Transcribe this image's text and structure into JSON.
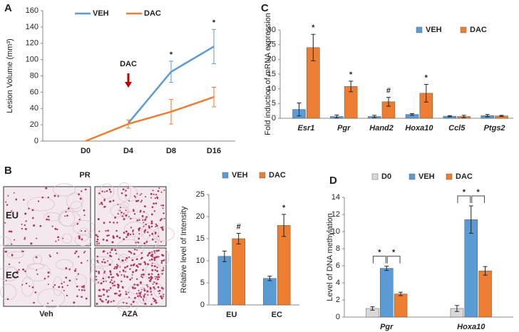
{
  "panel_labels": [
    "A",
    "B",
    "C",
    "D"
  ],
  "image_panel": {
    "title": "PR",
    "rows": [
      "EU",
      "EC"
    ],
    "columns": [
      "Veh",
      "AZA"
    ]
  },
  "chart_data": [
    {
      "type": "line",
      "ylabel": "Lesion Volume (mm³)",
      "categories": [
        "D0",
        "D4",
        "D8",
        "D16"
      ],
      "ylim": [
        0,
        160
      ],
      "yticks": [
        0,
        20,
        40,
        60,
        80,
        100,
        120,
        140,
        160
      ],
      "series": [
        {
          "name": "VEH",
          "color": "#5b9bd5",
          "values": [
            null,
            22,
            85,
            116
          ],
          "errors": [
            null,
            null,
            13,
            21
          ],
          "annotations": [
            null,
            null,
            "*",
            "*"
          ]
        },
        {
          "name": "DAC",
          "color": "#ed7d31",
          "values": [
            0,
            21,
            36,
            54
          ],
          "errors": [
            null,
            5,
            15,
            12
          ],
          "annotations": [
            null,
            null,
            null,
            null
          ]
        }
      ],
      "event": {
        "label": "DAC",
        "x": "D4",
        "color": "#c00000"
      }
    },
    {
      "type": "bar",
      "ylabel": "Relative level of Intensity",
      "categories": [
        "EU",
        "EC"
      ],
      "ylim": [
        0,
        25
      ],
      "yticks": [
        0,
        5,
        10,
        15,
        20,
        25
      ],
      "series": [
        {
          "name": "VEH",
          "color": "#5b9bd5",
          "values": [
            11,
            6
          ],
          "errors": [
            1.2,
            0.5
          ],
          "annotations": [
            null,
            null
          ]
        },
        {
          "name": "DAC",
          "color": "#ed7d31",
          "values": [
            15,
            18
          ],
          "errors": [
            1.2,
            2.5
          ],
          "annotations": [
            "#",
            "*"
          ]
        }
      ]
    },
    {
      "type": "bar",
      "ylabel": "Fold induction  of mRNA expression",
      "italic_categories": true,
      "categories": [
        "Esr1",
        "Pgr",
        "Hand2",
        "Hoxa10",
        "Ccl5",
        "Ptgs2"
      ],
      "ylim": [
        0,
        30
      ],
      "yticks": [
        0,
        5,
        10,
        15,
        20,
        25,
        30
      ],
      "series": [
        {
          "name": "VEH",
          "color": "#5b9bd5",
          "values": [
            3,
            0.6,
            0.6,
            1.3,
            0.7,
            0.9
          ],
          "errors": [
            2.2,
            0.5,
            0.4,
            0.3,
            0.2,
            0.4
          ],
          "annotations": [
            null,
            null,
            null,
            null,
            null,
            null
          ]
        },
        {
          "name": "DAC",
          "color": "#ed7d31",
          "values": [
            24,
            10.8,
            5.6,
            8.5,
            0.6,
            0.8
          ],
          "errors": [
            4.5,
            1.8,
            1.5,
            3,
            0.4,
            0.2
          ],
          "annotations": [
            "*",
            "*",
            "#",
            "*",
            null,
            null
          ]
        }
      ]
    },
    {
      "type": "bar",
      "ylabel": "Level of DNA methylation",
      "italic_categories": true,
      "categories": [
        "Pgr",
        "Hoxa10"
      ],
      "ylim": [
        0,
        14
      ],
      "yticks": [
        0,
        2,
        4,
        6,
        8,
        10,
        12,
        14
      ],
      "series": [
        {
          "name": "D0",
          "color": "#d9d9d9",
          "values": [
            1,
            1
          ],
          "errors": [
            0.2,
            0.35
          ]
        },
        {
          "name": "VEH",
          "color": "#5b9bd5",
          "values": [
            5.7,
            11.4
          ],
          "errors": [
            0.25,
            1.6
          ]
        },
        {
          "name": "DAC",
          "color": "#ed7d31",
          "values": [
            2.7,
            5.4
          ],
          "errors": [
            0.2,
            0.5
          ]
        }
      ],
      "comparisons": [
        {
          "category": "Pgr",
          "between": [
            "D0",
            "VEH"
          ],
          "label": "*"
        },
        {
          "category": "Pgr",
          "between": [
            "VEH",
            "DAC"
          ],
          "label": "*"
        },
        {
          "category": "Hoxa10",
          "between": [
            "D0",
            "VEH"
          ],
          "label": "*"
        },
        {
          "category": "Hoxa10",
          "between": [
            "VEH",
            "DAC"
          ],
          "label": "*"
        }
      ]
    }
  ]
}
